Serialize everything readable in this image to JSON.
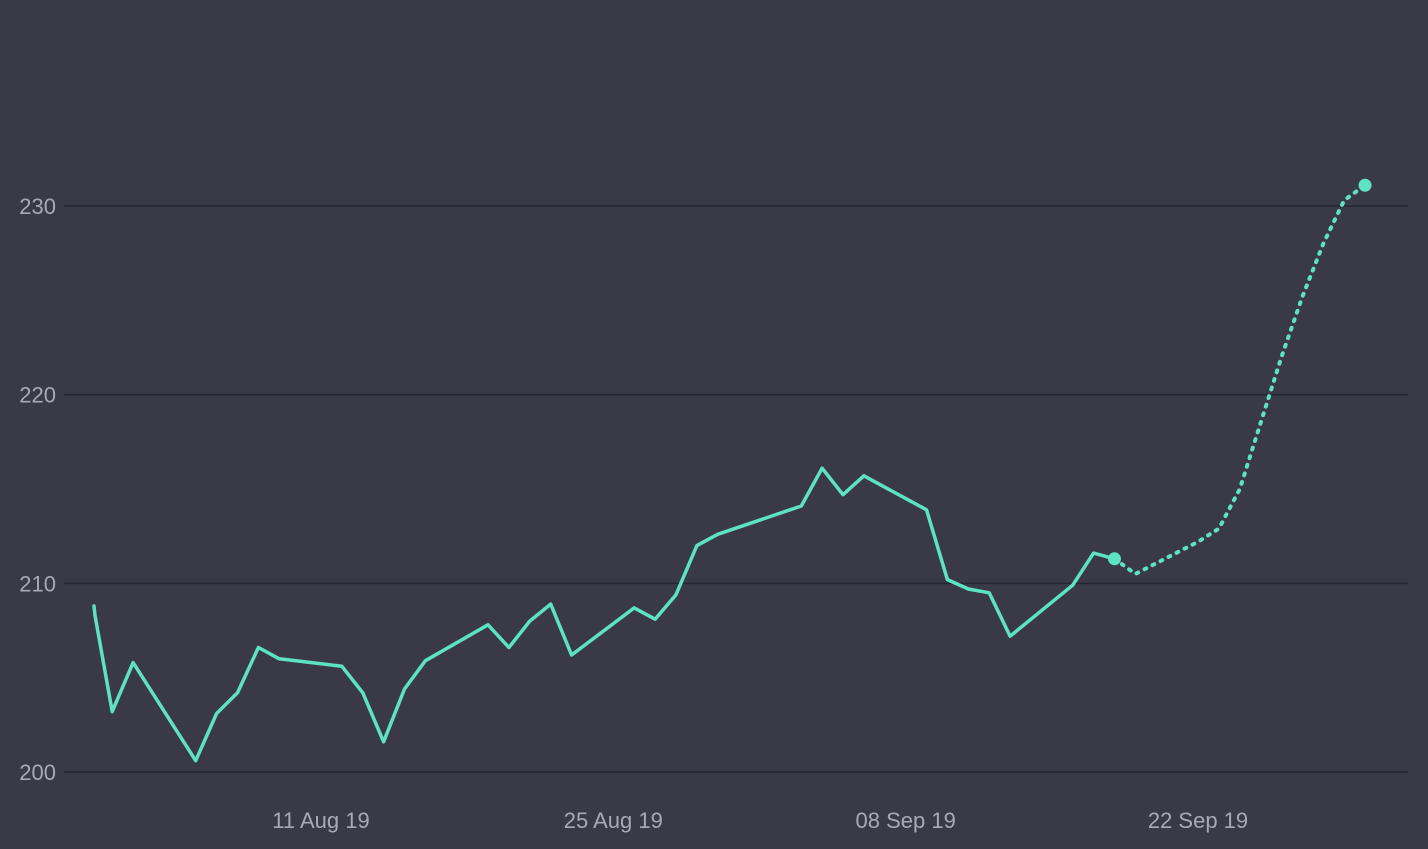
{
  "colors": {
    "background": "#3a3a46",
    "grid": "#26262e",
    "tick_text": "#a9a9b6",
    "series": "#5de3c1"
  },
  "chart_data": {
    "type": "line",
    "title": "",
    "xlabel": "",
    "ylabel": "",
    "ylim": [
      200,
      233
    ],
    "yticks": [
      200,
      210,
      220,
      230
    ],
    "xlim": [
      "2019-07-31",
      "2019-10-01"
    ],
    "xticks": [
      {
        "date": "2019-08-11",
        "label": "11 Aug 19"
      },
      {
        "date": "2019-08-25",
        "label": "25 Aug 19"
      },
      {
        "date": "2019-09-08",
        "label": "08 Sep 19"
      },
      {
        "date": "2019-09-22",
        "label": "22 Sep 19"
      }
    ],
    "grid": true,
    "legend": "none",
    "series": [
      {
        "style": "solid",
        "end_marker": true,
        "points": [
          [
            "2019-07-31",
            208.8
          ],
          [
            "2019-07-31",
            208.3
          ],
          [
            "2019-08-01",
            203.2
          ],
          [
            "2019-08-02",
            205.8
          ],
          [
            "2019-08-05",
            200.6
          ],
          [
            "2019-08-06",
            203.1
          ],
          [
            "2019-08-07",
            204.2
          ],
          [
            "2019-08-08",
            206.6
          ],
          [
            "2019-08-09",
            206.0
          ],
          [
            "2019-08-12",
            205.6
          ],
          [
            "2019-08-13",
            204.2
          ],
          [
            "2019-08-14",
            201.6
          ],
          [
            "2019-08-15",
            204.4
          ],
          [
            "2019-08-16",
            205.9
          ],
          [
            "2019-08-19",
            207.8
          ],
          [
            "2019-08-20",
            206.6
          ],
          [
            "2019-08-21",
            208.0
          ],
          [
            "2019-08-22",
            208.9
          ],
          [
            "2019-08-23",
            206.2
          ],
          [
            "2019-08-26",
            208.7
          ],
          [
            "2019-08-27",
            208.1
          ],
          [
            "2019-08-28",
            209.4
          ],
          [
            "2019-08-29",
            212.0
          ],
          [
            "2019-08-30",
            212.6
          ],
          [
            "2019-09-03",
            214.1
          ],
          [
            "2019-09-04",
            216.1
          ],
          [
            "2019-09-05",
            214.7
          ],
          [
            "2019-09-06",
            215.7
          ],
          [
            "2019-09-09",
            213.9
          ],
          [
            "2019-09-10",
            210.2
          ],
          [
            "2019-09-11",
            209.7
          ],
          [
            "2019-09-12",
            209.5
          ],
          [
            "2019-09-13",
            207.2
          ],
          [
            "2019-09-16",
            209.9
          ],
          [
            "2019-09-17",
            211.6
          ],
          [
            "2019-09-18",
            211.3
          ]
        ]
      },
      {
        "style": "dotted",
        "end_marker": true,
        "points": [
          [
            "2019-09-18",
            211.3
          ],
          [
            "2019-09-19",
            210.5
          ],
          [
            "2019-09-22",
            212.2
          ],
          [
            "2019-09-23",
            212.9
          ],
          [
            "2019-09-24",
            215.0
          ],
          [
            "2019-09-25",
            218.5
          ],
          [
            "2019-09-26",
            222.0
          ],
          [
            "2019-09-27",
            225.2
          ],
          [
            "2019-09-28",
            228.0
          ],
          [
            "2019-09-29",
            230.3
          ],
          [
            "2019-09-30",
            231.1
          ]
        ]
      }
    ]
  }
}
